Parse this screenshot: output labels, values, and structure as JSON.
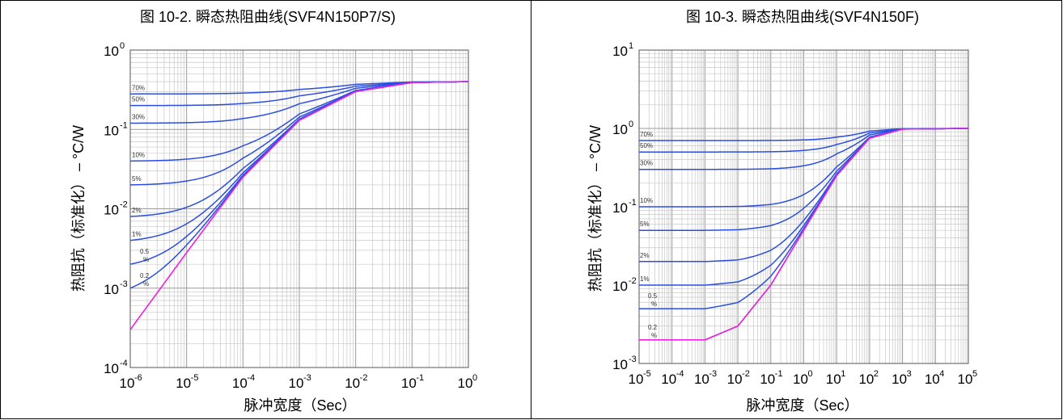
{
  "colors": {
    "duty_curve": "#2b4ee0",
    "single_pulse": "#ee22dd",
    "grid_minor": "#c8c8c8",
    "grid_major": "#9a9a9a",
    "border": "#000000"
  },
  "chart_data": [
    {
      "type": "line",
      "title": "图 10-2. 瞬态热阻曲线(SVF4N150P7/S)",
      "xlabel": "脉冲宽度（Sec）",
      "ylabel": "热阻抗（标准化） – °C/W",
      "xscale": "log",
      "yscale": "log",
      "xlim": [
        1e-06,
        1
      ],
      "ylim": [
        0.0001,
        1
      ],
      "x_ticks": [
        {
          "base": "10",
          "exp": "-6"
        },
        {
          "base": "10",
          "exp": "-5"
        },
        {
          "base": "10",
          "exp": "-4"
        },
        {
          "base": "10",
          "exp": "-3"
        },
        {
          "base": "10",
          "exp": "-2"
        },
        {
          "base": "10",
          "exp": "-1"
        },
        {
          "base": "10",
          "exp": "0"
        }
      ],
      "y_ticks": [
        {
          "base": "10",
          "exp": "-4"
        },
        {
          "base": "10",
          "exp": "-3"
        },
        {
          "base": "10",
          "exp": "-2"
        },
        {
          "base": "10",
          "exp": "-1"
        },
        {
          "base": "10",
          "exp": "0"
        }
      ],
      "grid": true,
      "legend": "inline labels at left end of curves",
      "steady_value": 0.4,
      "single_pulse_x": [
        1e-06,
        1e-05,
        0.0001,
        0.001,
        0.01,
        0.1,
        1
      ],
      "single_pulse_y": [
        0.0003,
        0.0028,
        0.025,
        0.13,
        0.3,
        0.39,
        0.4
      ],
      "series": [
        {
          "label": "70%",
          "values_at_start": 0.28
        },
        {
          "label": "50%",
          "values_at_start": 0.2
        },
        {
          "label": "30%",
          "values_at_start": 0.12
        },
        {
          "label": "10%",
          "values_at_start": 0.04
        },
        {
          "label": "5%",
          "values_at_start": 0.02
        },
        {
          "label": "2%",
          "values_at_start": 0.008
        },
        {
          "label": "1%",
          "values_at_start": 0.004
        },
        {
          "label": "0.5 %",
          "values_at_start": 0.002
        },
        {
          "label": "0.2 %",
          "values_at_start": 0.001
        }
      ]
    },
    {
      "type": "line",
      "title": "图 10-3. 瞬态热阻曲线(SVF4N150F)",
      "xlabel": "脉冲宽度（Sec）",
      "ylabel": "热阻抗（标准化） – °C/W",
      "xscale": "log",
      "yscale": "log",
      "xlim": [
        1e-05,
        100000.0
      ],
      "ylim": [
        0.001,
        10
      ],
      "x_ticks": [
        {
          "base": "10",
          "exp": "-5"
        },
        {
          "base": "10",
          "exp": "-4"
        },
        {
          "base": "10",
          "exp": "-3"
        },
        {
          "base": "10",
          "exp": "-2"
        },
        {
          "base": "10",
          "exp": "-1"
        },
        {
          "base": "10",
          "exp": "0"
        },
        {
          "base": "10",
          "exp": "1"
        },
        {
          "base": "10",
          "exp": "2"
        },
        {
          "base": "10",
          "exp": "3"
        },
        {
          "base": "10",
          "exp": "4"
        },
        {
          "base": "10",
          "exp": "5"
        }
      ],
      "y_ticks": [
        {
          "base": "10",
          "exp": "-3"
        },
        {
          "base": "10",
          "exp": "-2"
        },
        {
          "base": "10",
          "exp": "-1"
        },
        {
          "base": "10",
          "exp": "0"
        },
        {
          "base": "10",
          "exp": "1"
        }
      ],
      "grid": true,
      "legend": "inline labels at left end of curves",
      "steady_value": 1.0,
      "single_pulse_x": [
        1e-05,
        0.001,
        0.01,
        0.1,
        1,
        10,
        100,
        1000,
        100000.0
      ],
      "single_pulse_y": [
        0.002,
        0.002,
        0.003,
        0.01,
        0.05,
        0.25,
        0.75,
        0.98,
        1.0
      ],
      "series": [
        {
          "label": "70%",
          "values_at_start": 0.7
        },
        {
          "label": "50%",
          "values_at_start": 0.5
        },
        {
          "label": "30%",
          "values_at_start": 0.3
        },
        {
          "label": "10%",
          "values_at_start": 0.1
        },
        {
          "label": "5%",
          "values_at_start": 0.05
        },
        {
          "label": "2%",
          "values_at_start": 0.02
        },
        {
          "label": "1%",
          "values_at_start": 0.01
        },
        {
          "label": "0.5 %",
          "values_at_start": 0.005
        },
        {
          "label": "0.2 %",
          "values_at_start": 0.002
        }
      ]
    }
  ]
}
